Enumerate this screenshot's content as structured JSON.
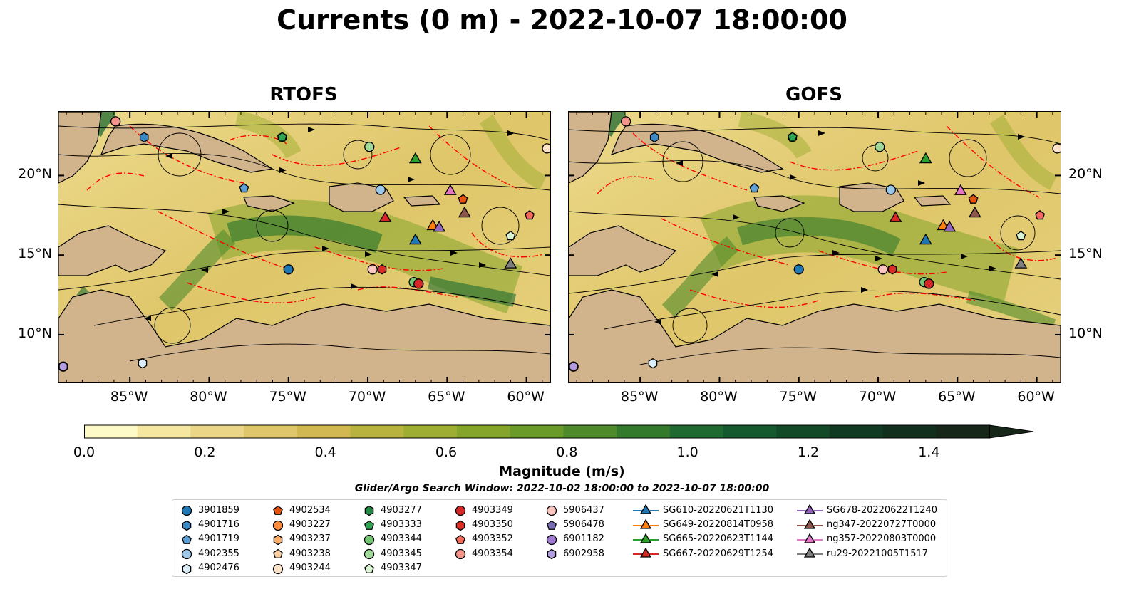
{
  "title": "Currents (0 m) - 2022-10-07 18:00:00",
  "panels": [
    {
      "title": "RTOFS"
    },
    {
      "title": "GOFS"
    }
  ],
  "axes": {
    "lon_ticks": [
      "85°W",
      "80°W",
      "75°W",
      "70°W",
      "65°W",
      "60°W"
    ],
    "lat_ticks": [
      "20°N",
      "15°N",
      "10°N"
    ],
    "lon_values": [
      -85,
      -80,
      -75,
      -70,
      -65,
      -60
    ],
    "lat_values": [
      20,
      15,
      10
    ],
    "lon_range": [
      -89.5,
      -58.5
    ],
    "lat_range": [
      7,
      24
    ]
  },
  "colorbar": {
    "label": "Magnitude (m/s)",
    "tick_labels": [
      "0.0",
      "0.2",
      "0.4",
      "0.6",
      "0.8",
      "1.0",
      "1.2",
      "1.4"
    ],
    "tick_values": [
      0,
      0.2,
      0.4,
      0.6,
      0.8,
      1.0,
      1.2,
      1.4
    ],
    "range": [
      0,
      1.5
    ],
    "extend": "max",
    "colors": [
      "#fefac8",
      "#f5e7a0",
      "#ead686",
      "#dfc66a",
      "#d1b850",
      "#b8b33f",
      "#9eae32",
      "#84a42a",
      "#6a9a28",
      "#4e8a2a",
      "#347a2c",
      "#1e6a30",
      "#155a2e",
      "#124a28",
      "#113a22",
      "#10301d",
      "#162618"
    ]
  },
  "search_window": "Glider/Argo Search Window: 2022-10-02 18:00:00 to 2022-10-07 18:00:00",
  "legend": [
    {
      "label": "3901859",
      "marker": "circle",
      "color": "#1f77b4"
    },
    {
      "label": "4901716",
      "marker": "hexagon",
      "color": "#3a88c4"
    },
    {
      "label": "4901719",
      "marker": "pentagon",
      "color": "#5d9fd3"
    },
    {
      "label": "4902355",
      "marker": "circle",
      "color": "#9ec8ea"
    },
    {
      "label": "4902476",
      "marker": "hexagon",
      "color": "#dceefa"
    },
    {
      "label": "4902534",
      "marker": "pentagon",
      "color": "#e6550d"
    },
    {
      "label": "4903227",
      "marker": "circle",
      "color": "#fd8d3c"
    },
    {
      "label": "4903237",
      "marker": "hexagon",
      "color": "#fdae6b"
    },
    {
      "label": "4903238",
      "marker": "pentagon",
      "color": "#fdd0a2"
    },
    {
      "label": "4903244",
      "marker": "circle",
      "color": "#fde3c8"
    },
    {
      "label": "4903277",
      "marker": "hexagon",
      "color": "#238b45"
    },
    {
      "label": "4903333",
      "marker": "pentagon",
      "color": "#31a354"
    },
    {
      "label": "4903344",
      "marker": "circle",
      "color": "#74c476"
    },
    {
      "label": "4903345",
      "marker": "circle",
      "color": "#a1d99b"
    },
    {
      "label": "4903347",
      "marker": "pentagon",
      "color": "#d9f5d3"
    },
    {
      "label": "4903349",
      "marker": "circle",
      "color": "#d62728"
    },
    {
      "label": "4903350",
      "marker": "hexagon",
      "color": "#de2d26"
    },
    {
      "label": "4903352",
      "marker": "pentagon",
      "color": "#ef6a5a"
    },
    {
      "label": "4903354",
      "marker": "circle",
      "color": "#f4938a"
    },
    {
      "label": "5906437",
      "marker": "circle",
      "color": "#fcc5c0"
    },
    {
      "label": "5906478",
      "marker": "pentagon",
      "color": "#756bb1"
    },
    {
      "label": "6901182",
      "marker": "circle",
      "color": "#9e7bd1"
    },
    {
      "label": "6902958",
      "marker": "hexagon",
      "color": "#b39be0"
    },
    {
      "label": "SG610-20220621T1130",
      "marker": "triangle",
      "color": "#1f77b4"
    },
    {
      "label": "SG649-20220814T0958",
      "marker": "triangle",
      "color": "#ff7f0e"
    },
    {
      "label": "SG665-20220623T1144",
      "marker": "triangle",
      "color": "#2ca02c"
    },
    {
      "label": "SG667-20220629T1254",
      "marker": "triangle",
      "color": "#d62728"
    },
    {
      "label": "SG678-20220622T1240",
      "marker": "triangle",
      "color": "#9467bd"
    },
    {
      "label": "ng347-20220727T0000",
      "marker": "triangle",
      "color": "#8c564b"
    },
    {
      "label": "ng357-20220803T0000",
      "marker": "triangle",
      "color": "#e377c2"
    },
    {
      "label": "ru29-20221005T1517",
      "marker": "triangle",
      "color": "#7f7f7f"
    }
  ],
  "map_markers": [
    {
      "id": "3901859",
      "lon": -75.0,
      "lat": 14.1
    },
    {
      "id": "4901716",
      "lon": -84.1,
      "lat": 22.4
    },
    {
      "id": "4901719",
      "lon": -77.8,
      "lat": 19.2
    },
    {
      "id": "4902355",
      "lon": -69.2,
      "lat": 19.1
    },
    {
      "id": "4902476",
      "lon": -84.2,
      "lat": 8.2
    },
    {
      "id": "4902534",
      "lon": -64.0,
      "lat": 18.5
    },
    {
      "id": "4903227",
      "lon": -66.8,
      "lat": 13.2
    },
    {
      "id": "4903237",
      "lon": -58.7,
      "lat": 21.7
    },
    {
      "id": "4903238",
      "lon": -58.7,
      "lat": 21.7
    },
    {
      "id": "4903244",
      "lon": -58.7,
      "lat": 21.7
    },
    {
      "id": "4903277",
      "lon": -75.4,
      "lat": 22.4
    },
    {
      "id": "4903333",
      "lon": -75.4,
      "lat": 22.4
    },
    {
      "id": "4903344",
      "lon": -67.1,
      "lat": 13.3
    },
    {
      "id": "4903345",
      "lon": -69.9,
      "lat": 21.8
    },
    {
      "id": "4903347",
      "lon": -61.0,
      "lat": 16.2
    },
    {
      "id": "4903349",
      "lon": -66.8,
      "lat": 13.2
    },
    {
      "id": "4903350",
      "lon": -69.1,
      "lat": 14.1
    },
    {
      "id": "4903352",
      "lon": -59.8,
      "lat": 17.5
    },
    {
      "id": "4903354",
      "lon": -85.9,
      "lat": 23.4
    },
    {
      "id": "5906437",
      "lon": -69.7,
      "lat": 14.1
    },
    {
      "id": "5906478",
      "lon": -89.2,
      "lat": 8.0
    },
    {
      "id": "6901182",
      "lon": -89.2,
      "lat": 8.0
    },
    {
      "id": "6902958",
      "lon": -89.2,
      "lat": 8.0
    },
    {
      "id": "SG610-20220621T1130",
      "lon": -67.0,
      "lat": 15.9
    },
    {
      "id": "SG649-20220814T0958",
      "lon": -65.9,
      "lat": 16.8
    },
    {
      "id": "SG665-20220623T1144",
      "lon": -67.0,
      "lat": 21.0
    },
    {
      "id": "SG667-20220629T1254",
      "lon": -68.9,
      "lat": 17.3
    },
    {
      "id": "SG678-20220622T1240",
      "lon": -65.5,
      "lat": 16.7
    },
    {
      "id": "ng347-20220727T0000",
      "lon": -63.9,
      "lat": 17.6
    },
    {
      "id": "ng357-20220803T0000",
      "lon": -64.8,
      "lat": 19.0
    },
    {
      "id": "ru29-20221005T1517",
      "lon": -61.0,
      "lat": 14.4
    }
  ]
}
